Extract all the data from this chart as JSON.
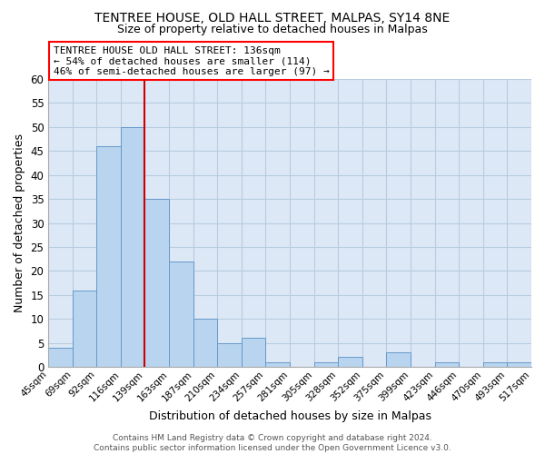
{
  "title_line1": "TENTREE HOUSE, OLD HALL STREET, MALPAS, SY14 8NE",
  "title_line2": "Size of property relative to detached houses in Malpas",
  "xlabel": "Distribution of detached houses by size in Malpas",
  "ylabel": "Number of detached properties",
  "bar_edges": [
    45,
    69,
    92,
    116,
    139,
    163,
    187,
    210,
    234,
    257,
    281,
    305,
    328,
    352,
    375,
    399,
    423,
    446,
    470,
    493,
    517
  ],
  "bar_heights": [
    4,
    16,
    46,
    50,
    35,
    22,
    10,
    5,
    6,
    1,
    0,
    1,
    2,
    0,
    3,
    0,
    1,
    0,
    1,
    1
  ],
  "bar_color": "#b8d4ee",
  "bar_edge_color": "#6699cc",
  "vline_x": 139,
  "vline_color": "#cc0000",
  "ylim": [
    0,
    60
  ],
  "annotation_box_text": "TENTREE HOUSE OLD HALL STREET: 136sqm\n← 54% of detached houses are smaller (114)\n46% of semi-detached houses are larger (97) →",
  "footer_line1": "Contains HM Land Registry data © Crown copyright and database right 2024.",
  "footer_line2": "Contains public sector information licensed under the Open Government Licence v3.0.",
  "tick_labels": [
    "45sqm",
    "69sqm",
    "92sqm",
    "116sqm",
    "139sqm",
    "163sqm",
    "187sqm",
    "210sqm",
    "234sqm",
    "257sqm",
    "281sqm",
    "305sqm",
    "328sqm",
    "352sqm",
    "375sqm",
    "399sqm",
    "423sqm",
    "446sqm",
    "470sqm",
    "493sqm",
    "517sqm"
  ],
  "background_color": "#ffffff",
  "axes_bg_color": "#dce8f5",
  "grid_color": "#b8cce0",
  "fig_width": 6.0,
  "fig_height": 5.0
}
